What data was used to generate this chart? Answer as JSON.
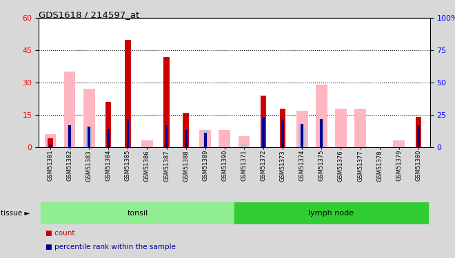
{
  "title": "GDS1618 / 214597_at",
  "samples": [
    "GSM51381",
    "GSM51382",
    "GSM51383",
    "GSM51384",
    "GSM51385",
    "GSM51386",
    "GSM51387",
    "GSM51388",
    "GSM51389",
    "GSM51390",
    "GSM51371",
    "GSM51372",
    "GSM51373",
    "GSM51374",
    "GSM51375",
    "GSM51376",
    "GSM51377",
    "GSM51378",
    "GSM51379",
    "GSM51380"
  ],
  "count": [
    4,
    0,
    0,
    21,
    50,
    0,
    42,
    16,
    0,
    0,
    0,
    24,
    18,
    0,
    0,
    0,
    0,
    0,
    0,
    14
  ],
  "rank": [
    2,
    17,
    16,
    14,
    21,
    0,
    17,
    13,
    11,
    0,
    0,
    23,
    21,
    18,
    22,
    0,
    0,
    0,
    0,
    17
  ],
  "value_absent": [
    6,
    35,
    27,
    0,
    0,
    3,
    0,
    0,
    8,
    8,
    5,
    0,
    0,
    17,
    29,
    18,
    18,
    0,
    3,
    0
  ],
  "rank_absent": [
    3,
    17,
    16,
    0,
    3,
    0,
    0,
    0,
    13,
    0,
    2,
    0,
    0,
    17,
    22,
    0,
    0,
    0,
    0,
    0
  ],
  "groups": [
    {
      "label": "tonsil",
      "start": 0,
      "end": 10,
      "color": "#90ee90"
    },
    {
      "label": "lymph node",
      "start": 10,
      "end": 20,
      "color": "#32cd32"
    }
  ],
  "ylim_left": [
    0,
    60
  ],
  "ylim_right": [
    0,
    100
  ],
  "yticks_left": [
    0,
    15,
    30,
    45,
    60
  ],
  "yticks_right": [
    0,
    25,
    50,
    75,
    100
  ],
  "color_count": "#cc0000",
  "color_rank": "#000099",
  "color_value_absent": "#ffb6c1",
  "color_rank_absent": "#b0c4de",
  "bar_width": 0.6,
  "fig_bg": "#d8d8d8",
  "plot_bg": "#ffffff",
  "xtick_bg": "#c8c8c8"
}
